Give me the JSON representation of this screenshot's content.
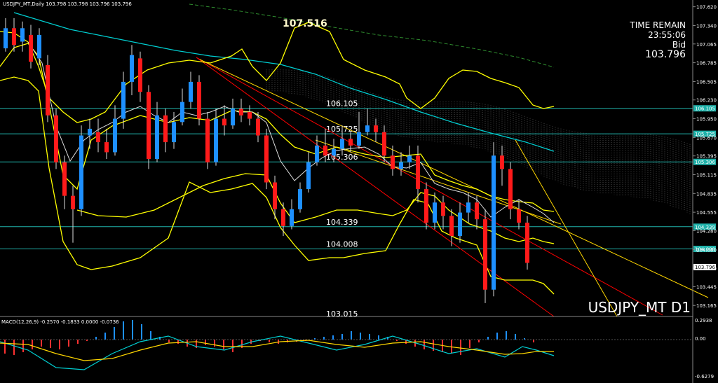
{
  "header": {
    "symbol_line": "USDJPY_MT,Daily  103.798 103.798 103.796 103.796"
  },
  "info": {
    "time_label": "TIME REMAIN",
    "time_value": "23:55:06",
    "bid_label": "Bid",
    "bid_value": "103.796"
  },
  "symbol_title": "USDJPY_MT D1",
  "peak_label": "107.516",
  "macd_label": "MACD(12,26,9) -0.2570 -0.1833 0.0000 -0.0736",
  "colors": {
    "background": "#000000",
    "bull_candle": "#1e90ff",
    "bear_candle": "#ff1a1a",
    "bands": "#ffff00",
    "level_lines": "#20b2aa",
    "cloud_line": "#00ced1",
    "trend_red": "#ff0000",
    "trend_yellow": "#ffd700",
    "macd_hist_pos": "#1e90ff",
    "macd_hist_neg": "#ff3030",
    "macd_line": "#00ced1",
    "signal_line": "#ffd700"
  },
  "chart_data": {
    "type": "candlestick",
    "timeframe": "D1",
    "ylim": [
      103.0,
      107.7
    ],
    "y_ticks": [
      "107.620",
      "107.340",
      "107.065",
      "106.785",
      "106.505",
      "106.230",
      "105.950",
      "105.670",
      "105.395",
      "105.115",
      "104.835",
      "104.555",
      "104.280",
      "104.000",
      "103.720",
      "103.445",
      "103.165"
    ],
    "price_tag_current": "103.796",
    "levels": [
      {
        "label": "106.105",
        "value": 106.105
      },
      {
        "label": "105.725",
        "value": 105.725
      },
      {
        "label": "105.306",
        "value": 105.306
      },
      {
        "label": "104.339",
        "value": 104.339
      },
      {
        "label": "104.008",
        "value": 104.008
      }
    ],
    "low_label": "103.015",
    "candles": [
      [
        107.0,
        107.3,
        107.45,
        106.95
      ],
      [
        107.3,
        107.05,
        107.45,
        106.95
      ],
      [
        107.1,
        107.3,
        107.4,
        106.95
      ],
      [
        107.2,
        106.8,
        107.35,
        106.7
      ],
      [
        106.85,
        107.2,
        107.3,
        106.75
      ],
      [
        106.75,
        106.0,
        106.9,
        105.9
      ],
      [
        106.0,
        105.3,
        106.1,
        105.2
      ],
      [
        105.3,
        104.8,
        105.4,
        104.6
      ],
      [
        104.8,
        104.6,
        104.95,
        104.1
      ],
      [
        104.6,
        105.7,
        105.85,
        104.5
      ],
      [
        105.7,
        105.8,
        105.95,
        105.5
      ],
      [
        105.75,
        105.6,
        105.95,
        105.45
      ],
      [
        105.6,
        105.45,
        105.8,
        105.35
      ],
      [
        105.45,
        105.95,
        106.15,
        105.4
      ],
      [
        105.95,
        106.5,
        106.65,
        105.8
      ],
      [
        106.5,
        106.9,
        107.05,
        106.3
      ],
      [
        106.85,
        106.35,
        106.95,
        106.2
      ],
      [
        106.35,
        105.35,
        106.45,
        105.2
      ],
      [
        105.35,
        106.0,
        106.2,
        105.3
      ],
      [
        106.0,
        105.6,
        106.1,
        105.45
      ],
      [
        105.6,
        105.9,
        106.05,
        105.5
      ],
      [
        105.9,
        106.2,
        106.4,
        105.85
      ],
      [
        106.2,
        106.5,
        106.65,
        106.1
      ],
      [
        106.5,
        105.95,
        106.6,
        105.85
      ],
      [
        105.95,
        105.3,
        106.05,
        105.2
      ],
      [
        105.3,
        105.95,
        106.1,
        105.25
      ],
      [
        105.95,
        105.85,
        106.15,
        105.7
      ],
      [
        105.85,
        106.1,
        106.25,
        105.8
      ],
      [
        106.1,
        106.0,
        106.25,
        105.9
      ],
      [
        106.05,
        105.95,
        106.15,
        105.85
      ],
      [
        105.95,
        105.7,
        106.05,
        105.6
      ],
      [
        105.7,
        105.0,
        105.8,
        104.9
      ],
      [
        105.0,
        104.6,
        105.1,
        104.45
      ],
      [
        104.6,
        104.35,
        104.7,
        104.2
      ],
      [
        104.35,
        104.6,
        104.75,
        104.3
      ],
      [
        104.6,
        104.9,
        105.0,
        104.55
      ],
      [
        104.9,
        105.3,
        105.45,
        104.85
      ],
      [
        105.3,
        105.55,
        105.7,
        105.25
      ],
      [
        105.55,
        105.4,
        105.8,
        105.3
      ],
      [
        105.4,
        105.5,
        105.65,
        105.3
      ],
      [
        105.5,
        105.65,
        105.85,
        105.4
      ],
      [
        105.65,
        105.55,
        105.75,
        105.45
      ],
      [
        105.55,
        105.75,
        106.05,
        105.5
      ],
      [
        105.75,
        105.85,
        106.1,
        105.7
      ],
      [
        105.85,
        105.75,
        105.95,
        105.6
      ],
      [
        105.75,
        105.4,
        105.85,
        105.3
      ],
      [
        105.4,
        105.2,
        105.55,
        105.1
      ],
      [
        105.2,
        105.3,
        105.45,
        105.1
      ],
      [
        105.3,
        105.4,
        105.55,
        105.2
      ],
      [
        105.4,
        104.9,
        105.55,
        104.7
      ],
      [
        104.9,
        104.4,
        105.0,
        104.3
      ],
      [
        104.4,
        104.7,
        104.85,
        104.3
      ],
      [
        104.7,
        104.5,
        104.8,
        104.3
      ],
      [
        104.5,
        104.2,
        104.6,
        104.05
      ],
      [
        104.2,
        104.55,
        104.7,
        104.1
      ],
      [
        104.55,
        104.7,
        104.85,
        104.4
      ],
      [
        104.7,
        104.45,
        104.8,
        104.3
      ],
      [
        104.45,
        103.4,
        104.6,
        103.2
      ],
      [
        103.4,
        105.4,
        105.6,
        103.3
      ],
      [
        105.4,
        105.2,
        105.55,
        104.95
      ],
      [
        105.2,
        104.6,
        105.3,
        104.45
      ],
      [
        104.6,
        104.4,
        104.75,
        104.3
      ],
      [
        104.4,
        103.8,
        104.5,
        103.7
      ]
    ]
  }
}
